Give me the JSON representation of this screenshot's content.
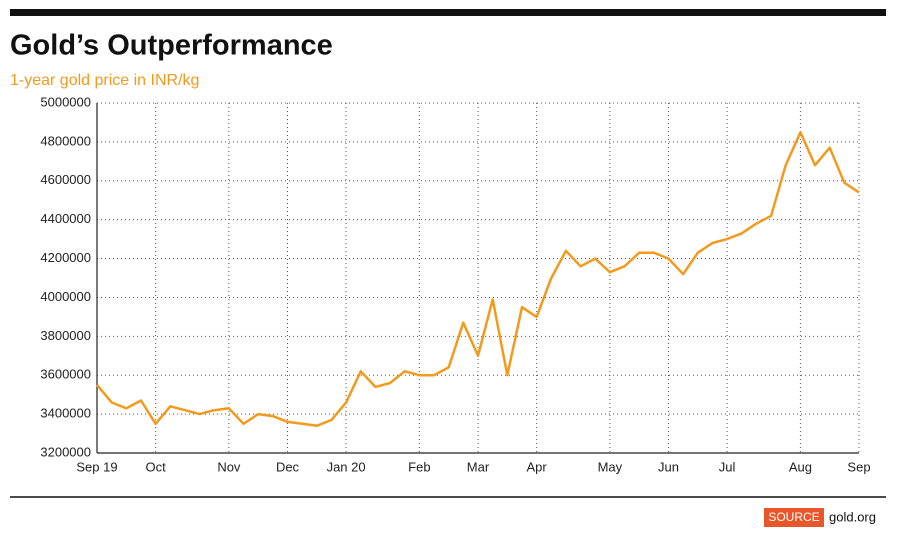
{
  "chart_data": {
    "type": "line",
    "title": "Gold’s Outperformance",
    "subtitle": "1-year gold price in INR/kg",
    "categories": [
      "Sep 19",
      null,
      null,
      null,
      "Oct",
      null,
      null,
      null,
      null,
      "Nov",
      null,
      null,
      null,
      "Dec",
      null,
      null,
      null,
      "Jan 20",
      null,
      null,
      null,
      null,
      "Feb",
      null,
      null,
      null,
      "Mar",
      null,
      null,
      null,
      "Apr",
      null,
      null,
      null,
      null,
      "May",
      null,
      null,
      null,
      "Jun",
      null,
      null,
      null,
      "Jul",
      null,
      null,
      null,
      null,
      "Aug",
      null,
      null,
      null,
      "Sep"
    ],
    "values": [
      3550000,
      3460000,
      3430000,
      3470000,
      3350000,
      3440000,
      3420000,
      3400000,
      3420000,
      3430000,
      3350000,
      3400000,
      3390000,
      3360000,
      3350000,
      3340000,
      3370000,
      3460000,
      3620000,
      3540000,
      3560000,
      3620000,
      3600000,
      3600000,
      3640000,
      3870000,
      3700000,
      3990000,
      3600000,
      3950000,
      3900000,
      4100000,
      4240000,
      4160000,
      4200000,
      4130000,
      4160000,
      4230000,
      4230000,
      4200000,
      4120000,
      4230000,
      4280000,
      4300000,
      4330000,
      4380000,
      4420000,
      4680000,
      4850000,
      4680000,
      4770000,
      4590000,
      4540000
    ],
    "color": "#f39a1e",
    "ylim": [
      3200000,
      5000000
    ],
    "yticks": [
      3200000,
      3400000,
      3600000,
      3800000,
      4000000,
      4200000,
      4400000,
      4600000,
      4800000,
      5000000
    ],
    "grid": true
  },
  "source_label": "SOURCE",
  "source": "gold.org"
}
